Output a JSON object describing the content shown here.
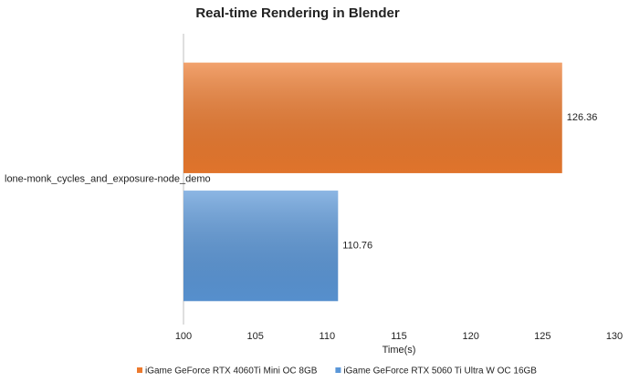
{
  "chart_data": {
    "type": "bar",
    "orientation": "horizontal",
    "title": "Real-time Rendering in Blender",
    "categories": [
      "lone-monk_cycles_and_exposure-node_demo"
    ],
    "series": [
      {
        "name": "iGame GeForce RTX 4060Ti Mini OC 8GB",
        "color": "#ec7a2e",
        "values": [
          126.36
        ]
      },
      {
        "name": "iGame GeForce RTX 5060 Ti Ultra W OC 16GB",
        "color": "#5b97d8",
        "values": [
          110.76
        ]
      }
    ],
    "xlabel": "Time(s)",
    "xlim": [
      100,
      130
    ],
    "xticks": [
      100,
      105,
      110,
      115,
      120,
      125,
      130
    ],
    "grid": false,
    "legend": "bottom"
  }
}
